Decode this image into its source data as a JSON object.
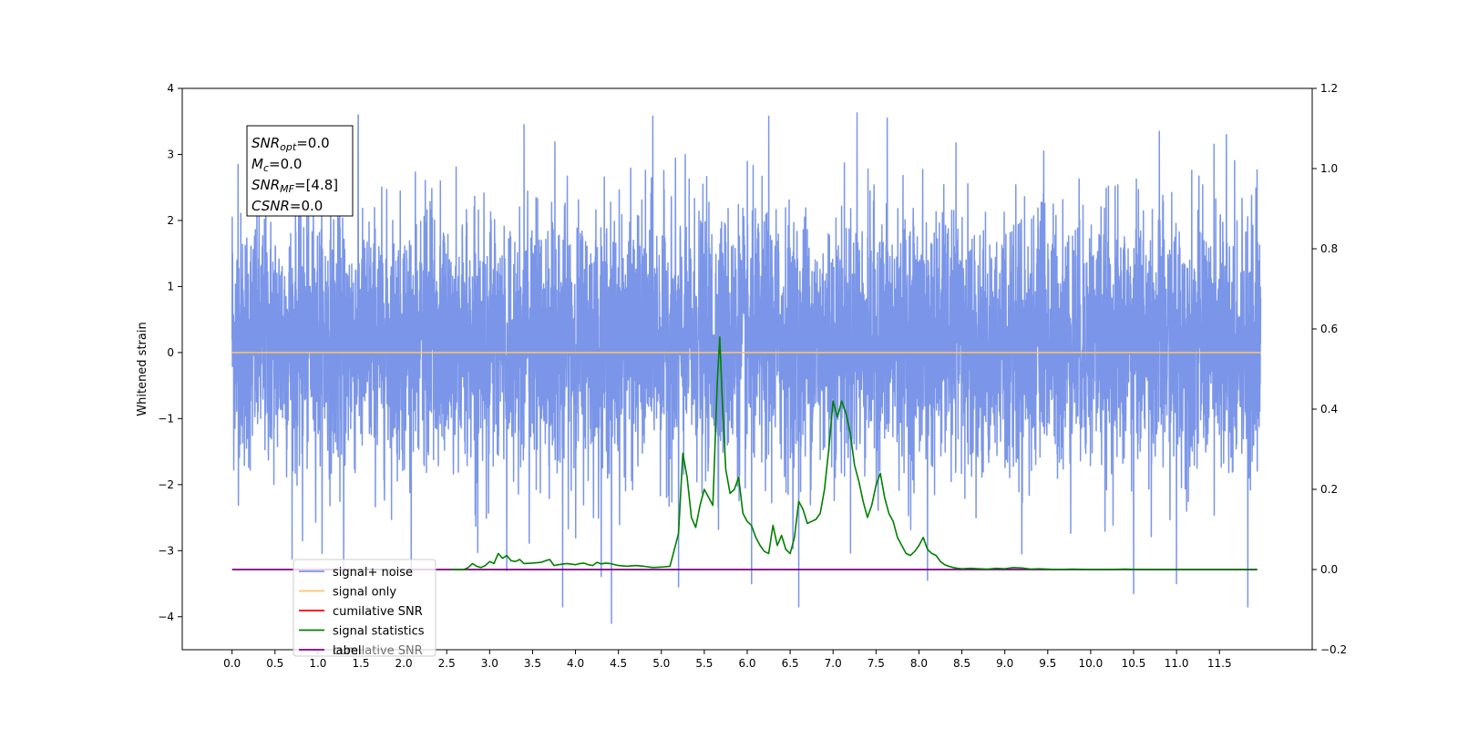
{
  "chart_data": {
    "type": "line",
    "title": "",
    "xlabel": "",
    "ylabel": "Whitened strain",
    "xlim": [
      -0.58,
      12.58
    ],
    "ylim": [
      -4.5,
      4.0
    ],
    "y2lim": [
      -0.2,
      1.2
    ],
    "x_ticks": [
      0.0,
      0.5,
      1.0,
      1.5,
      2.0,
      2.5,
      3.0,
      3.5,
      4.0,
      4.5,
      5.0,
      5.5,
      6.0,
      6.5,
      7.0,
      7.5,
      8.0,
      8.5,
      9.0,
      9.5,
      10.0,
      10.5,
      11.0,
      11.5
    ],
    "x_tick_labels": [
      "0.0",
      "0.5",
      "1.0",
      "1.5",
      "2.0",
      "2.5",
      "3.0",
      "3.5",
      "4.0",
      "4.5",
      "5.0",
      "5.5",
      "6.0",
      "6.5",
      "7.0",
      "7.5",
      "8.0",
      "8.5",
      "9.0",
      "9.5",
      "10.0",
      "10.5",
      "11.0",
      "11.5"
    ],
    "y_ticks": [
      4,
      3,
      2,
      1,
      0,
      -1,
      -2,
      -3,
      -4
    ],
    "y_tick_labels": [
      "4",
      "3",
      "2",
      "1",
      "0",
      "−1",
      "−2",
      "−3",
      "−4"
    ],
    "y2_ticks": [
      1.2,
      1.0,
      0.8,
      0.6,
      0.4,
      0.2,
      0.0,
      -0.2
    ],
    "y2_tick_labels": [
      "1.2",
      "1.0",
      "0.8",
      "0.6",
      "0.4",
      "0.2",
      "0.0",
      "−0.2"
    ],
    "grid": false,
    "legend_position": "lower-left",
    "stats_box": {
      "lines": [
        {
          "sym": "SNR",
          "sub": "opt",
          "val": "=0.0"
        },
        {
          "sym": "M",
          "sub": "c",
          "val": "=0.0"
        },
        {
          "sym": "SNR",
          "sub": "MF",
          "val": "=[4.8]"
        },
        {
          "sym": "CSNR",
          "sub": "",
          "val": "=0.0"
        }
      ]
    },
    "legend": [
      {
        "label": "signal+ noise",
        "color": "#7b96e8"
      },
      {
        "label": "signal only",
        "color": "#ffc36b"
      },
      {
        "label": "cumilative SNR",
        "color": "#ff0000"
      },
      {
        "label": "signal statistics",
        "color": "#008000"
      },
      {
        "label": "label",
        "color": "#800080"
      }
    ],
    "legend_overlap_text": "cumilative SNR",
    "series": [
      {
        "key": "noise",
        "axis": "left",
        "color": "#7b96e8",
        "x_range": [
          0.0,
          11.98
        ],
        "min": -4.1,
        "max": 3.6,
        "points": 6000,
        "peaks": [
          {
            "x": 0.07,
            "y": 2.85
          },
          {
            "x": 1.47,
            "y": 3.6
          },
          {
            "x": 3.4,
            "y": 3.45
          },
          {
            "x": 4.9,
            "y": 3.58
          },
          {
            "x": 6.25,
            "y": 3.58
          },
          {
            "x": 7.28,
            "y": 3.63
          },
          {
            "x": 7.63,
            "y": 3.55
          },
          {
            "x": 11.58,
            "y": 3.3
          },
          {
            "x": 10.8,
            "y": 3.35
          },
          {
            "x": 4.42,
            "y": -4.1
          },
          {
            "x": 3.85,
            "y": -3.85
          },
          {
            "x": 6.6,
            "y": -3.85
          },
          {
            "x": 11.83,
            "y": -3.85
          },
          {
            "x": 10.5,
            "y": -3.65
          },
          {
            "x": 5.2,
            "y": -3.55
          },
          {
            "x": 6.05,
            "y": -3.5
          },
          {
            "x": 11.0,
            "y": -3.5
          },
          {
            "x": 8.1,
            "y": -3.45
          },
          {
            "x": 1.3,
            "y": -3.35
          },
          {
            "x": 0.82,
            "y": -2.85
          },
          {
            "x": 3.2,
            "y": -3.3
          }
        ]
      },
      {
        "key": "signal_only",
        "axis": "left",
        "color": "#ffc36b",
        "x": [
          0.0,
          11.98
        ],
        "y": [
          0.0,
          0.0
        ]
      },
      {
        "key": "label",
        "axis": "right",
        "color": "#800080",
        "x": [
          0.0,
          11.94
        ],
        "y": [
          0.0,
          0.0
        ]
      },
      {
        "key": "signal_statistics",
        "axis": "right",
        "color": "#008000",
        "x": [
          2.55,
          2.6,
          2.65,
          2.7,
          2.75,
          2.8,
          2.85,
          2.9,
          2.95,
          3.0,
          3.05,
          3.1,
          3.15,
          3.2,
          3.25,
          3.3,
          3.35,
          3.4,
          3.5,
          3.6,
          3.65,
          3.7,
          3.75,
          3.8,
          3.9,
          4.0,
          4.05,
          4.1,
          4.15,
          4.2,
          4.25,
          4.3,
          4.35,
          4.4,
          4.5,
          4.6,
          4.7,
          4.8,
          4.9,
          5.0,
          5.1,
          5.2,
          5.25,
          5.3,
          5.35,
          5.4,
          5.45,
          5.5,
          5.55,
          5.6,
          5.65,
          5.68,
          5.71,
          5.75,
          5.8,
          5.85,
          5.9,
          5.95,
          6.0,
          6.05,
          6.1,
          6.15,
          6.2,
          6.25,
          6.3,
          6.35,
          6.4,
          6.45,
          6.5,
          6.55,
          6.6,
          6.65,
          6.7,
          6.75,
          6.8,
          6.85,
          6.9,
          6.95,
          7.0,
          7.05,
          7.1,
          7.15,
          7.2,
          7.25,
          7.3,
          7.35,
          7.4,
          7.45,
          7.5,
          7.55,
          7.6,
          7.65,
          7.7,
          7.75,
          7.8,
          7.85,
          7.9,
          7.95,
          8.0,
          8.05,
          8.1,
          8.15,
          8.2,
          8.25,
          8.3,
          8.35,
          8.4,
          8.45,
          8.5,
          8.6,
          8.7,
          8.8,
          8.9,
          9.0,
          9.1,
          9.2,
          9.3,
          9.4,
          9.5,
          9.6,
          9.8,
          10.0,
          10.2,
          10.4,
          10.6,
          10.8,
          11.0,
          11.2,
          11.4,
          11.6,
          11.8,
          11.94
        ],
        "y": [
          0.0,
          0.0,
          0.0,
          0.0,
          0.005,
          0.015,
          0.008,
          0.005,
          0.01,
          0.02,
          0.015,
          0.04,
          0.028,
          0.035,
          0.022,
          0.02,
          0.025,
          0.015,
          0.016,
          0.018,
          0.022,
          0.025,
          0.01,
          0.012,
          0.015,
          0.012,
          0.015,
          0.016,
          0.012,
          0.01,
          0.018,
          0.014,
          0.016,
          0.015,
          0.01,
          0.008,
          0.01,
          0.008,
          0.005,
          0.006,
          0.008,
          0.09,
          0.29,
          0.23,
          0.13,
          0.105,
          0.16,
          0.2,
          0.18,
          0.16,
          0.46,
          0.58,
          0.42,
          0.25,
          0.19,
          0.2,
          0.23,
          0.14,
          0.12,
          0.11,
          0.08,
          0.06,
          0.045,
          0.04,
          0.11,
          0.06,
          0.085,
          0.05,
          0.04,
          0.08,
          0.17,
          0.15,
          0.115,
          0.12,
          0.125,
          0.14,
          0.2,
          0.3,
          0.42,
          0.38,
          0.42,
          0.39,
          0.34,
          0.26,
          0.22,
          0.17,
          0.13,
          0.16,
          0.21,
          0.24,
          0.18,
          0.14,
          0.12,
          0.08,
          0.06,
          0.04,
          0.035,
          0.045,
          0.06,
          0.08,
          0.05,
          0.04,
          0.035,
          0.02,
          0.012,
          0.008,
          0.005,
          0.003,
          0.002,
          0.003,
          0.002,
          0.001,
          0.003,
          0.002,
          0.005,
          0.004,
          0.001,
          0.002,
          0.001,
          0.0,
          0.001,
          0.0,
          0.0,
          0.001,
          0.0,
          0.0,
          0.0,
          0.0,
          0.0,
          0.0,
          0.0,
          0.0
        ]
      }
    ]
  }
}
